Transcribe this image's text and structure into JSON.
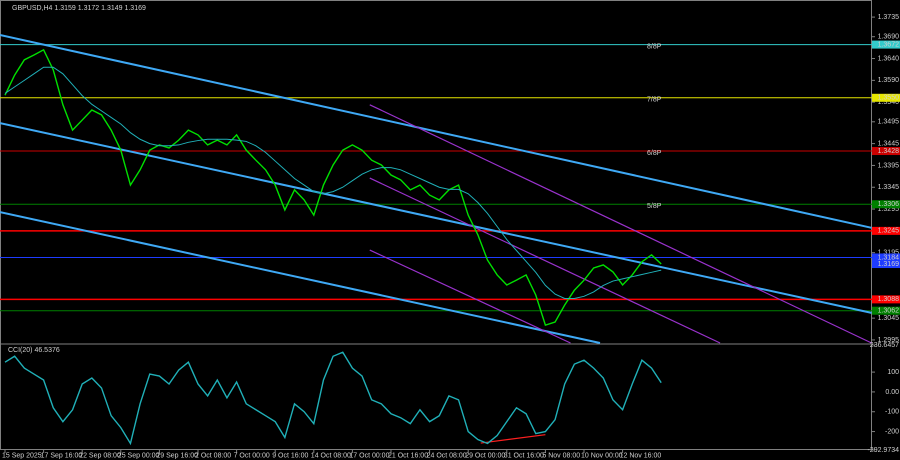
{
  "chart_data": [
    {
      "type": "line",
      "title": "GBPUSD,H4  1.3159 1.3172 1.3149 1.3169",
      "categories": [
        "15 Sep 2025",
        null,
        null,
        null,
        "17 Sep 16:00",
        null,
        null,
        null,
        "22 Sep 08:00",
        null,
        null,
        null,
        "25 Sep 00:00",
        null,
        null,
        null,
        "29 Sep 16:00",
        null,
        null,
        null,
        "2 Oct 08:00",
        null,
        null,
        null,
        "7 Oct 00:00",
        null,
        null,
        null,
        "9 Oct 16:00",
        null,
        null,
        null,
        "14 Oct 08:00",
        null,
        null,
        null,
        "17 Oct 00:00",
        null,
        null,
        null,
        "21 Oct 16:00",
        null,
        null,
        null,
        "24 Oct 08:00",
        null,
        null,
        null,
        "29 Oct 00:00",
        null,
        null,
        null,
        "31 Oct 16:00",
        null,
        null,
        null,
        "5 Nov 08:00",
        null,
        null,
        null,
        "10 Nov 00:00",
        null,
        null,
        null,
        "12 Nov 16:00",
        null,
        null,
        null,
        null
      ],
      "series": [
        {
          "color": "#00e000",
          "values": [
            1.3556,
            1.3602,
            1.3637,
            1.3648,
            1.366,
            1.3614,
            1.3534,
            1.3476,
            1.3499,
            1.3522,
            1.3511,
            1.3476,
            1.343,
            1.335,
            1.3385,
            1.343,
            1.3442,
            1.3435,
            1.3453,
            1.3476,
            1.3465,
            1.3442,
            1.3453,
            1.3442,
            1.3465,
            1.343,
            1.3407,
            1.3385,
            1.335,
            1.3293,
            1.3339,
            1.3316,
            1.3281,
            1.335,
            1.3396,
            1.343,
            1.3442,
            1.343,
            1.3407,
            1.3396,
            1.3373,
            1.3362,
            1.3339,
            1.335,
            1.3327,
            1.3316,
            1.3339,
            1.335,
            1.3281,
            1.3236,
            1.3178,
            1.3144,
            1.3121,
            1.3132,
            1.3144,
            1.3098,
            1.3029,
            1.3036,
            1.3075,
            1.3109,
            1.3132,
            1.316,
            1.3167,
            1.3151,
            1.3121,
            1.3144,
            1.3174,
            1.319,
            1.3169
          ]
        },
        {
          "color": "#20b0b8",
          "values": [
            1.356,
            1.3575,
            1.359,
            1.3605,
            1.362,
            1.362,
            1.3605,
            1.358,
            1.3555,
            1.3535,
            1.352,
            1.3505,
            1.349,
            1.347,
            1.3455,
            1.3445,
            1.344,
            1.344,
            1.3442,
            1.3448,
            1.3452,
            1.3455,
            1.3455,
            1.3455,
            1.3453,
            1.345,
            1.344,
            1.3425,
            1.3405,
            1.3385,
            1.3365,
            1.335,
            1.3335,
            1.333,
            1.3335,
            1.3345,
            1.336,
            1.3375,
            1.3385,
            1.339,
            1.339,
            1.3385,
            1.3375,
            1.3365,
            1.3355,
            1.3345,
            1.334,
            1.334,
            1.333,
            1.331,
            1.3285,
            1.3255,
            1.3225,
            1.32,
            1.3175,
            1.315,
            1.312,
            1.31,
            1.309,
            1.309,
            1.3095,
            1.3105,
            1.312,
            1.313,
            1.3135,
            1.314,
            1.3145,
            1.315,
            1.3155
          ]
        }
      ],
      "lines": [
        {
          "color": "#3fa9f5",
          "x": [
            -0.52,
            89.8
          ],
          "y": [
            1.3694,
            1.3252
          ]
        },
        {
          "color": "#3fa9f5",
          "x": [
            -0.52,
            89.8
          ],
          "y": [
            1.3492,
            1.3057
          ]
        },
        {
          "color": "#3fa9f5",
          "x": [
            -0.52,
            61.66
          ],
          "y": [
            1.3288,
            1.2988
          ]
        },
        {
          "color": "#9932cc",
          "x": [
            37.8,
            89.8
          ],
          "y": [
            1.3534,
            1.2988
          ]
        },
        {
          "color": "#9932cc",
          "x": [
            37.8,
            74.1
          ],
          "y": [
            1.3366,
            1.2988
          ]
        },
        {
          "color": "#9932cc",
          "x": [
            37.8,
            58.6
          ],
          "y": [
            1.3201,
            1.2988
          ]
        }
      ],
      "levels": [
        {
          "name": "8/8P",
          "value": 1.3672,
          "label": "1.3672",
          "color": "#33cccc"
        },
        {
          "name": "7/8P",
          "value": 1.355,
          "label": "1.3550",
          "color": "#e6e600"
        },
        {
          "name": "6/8P",
          "value": 1.3428,
          "label": "1.3428",
          "color": "#cc0000"
        },
        {
          "name": "5/8P",
          "value": 1.3306,
          "label": "1.3306",
          "color": "#008000"
        },
        {
          "value": 1.3245,
          "label": "1.3245",
          "color": "#ff0000"
        },
        {
          "value": 1.3184,
          "label": "1.3184",
          "color": "#1e3cff"
        },
        {
          "value": 1.3088,
          "label": "1.3088",
          "color": "#ff0000"
        },
        {
          "value": 1.3062,
          "label": "1.3062",
          "color": "#008000"
        }
      ],
      "last_price": 1.3169,
      "ylim": [
        1.2988,
        1.3765
      ],
      "yticks": [
        1.3735,
        {
          "value": 1.369,
          "label": "1.3690"
        },
        {
          "value": 1.364,
          "label": "1.3640"
        },
        {
          "value": 1.359,
          "label": "1.3590"
        },
        {
          "value": 1.354,
          "label": "1.3540"
        },
        1.3495,
        1.3445,
        1.3395,
        1.3345,
        1.3295,
        1.3195,
        1.3045,
        1.2995
      ]
    },
    {
      "type": "line",
      "title": "CCI(20) 46.5376",
      "series": [
        {
          "color": "#20b0b8",
          "values": [
            150,
            180,
            120,
            90,
            60,
            -80,
            -150,
            -90,
            40,
            70,
            20,
            -120,
            -180,
            -260,
            -60,
            90,
            80,
            40,
            110,
            150,
            40,
            -20,
            60,
            -30,
            50,
            -60,
            -90,
            -120,
            -150,
            -230,
            -60,
            -100,
            -160,
            60,
            180,
            200,
            120,
            80,
            -40,
            -60,
            -110,
            -130,
            -160,
            -90,
            -150,
            -120,
            -20,
            -40,
            -200,
            -240,
            -260,
            -220,
            -150,
            -80,
            -110,
            -210,
            -200,
            -140,
            40,
            140,
            160,
            120,
            70,
            -40,
            -90,
            40,
            160,
            120,
            46.5376
          ]
        }
      ],
      "lines": [
        {
          "color": "#ff2020",
          "x": [
            49.3,
            56.0
          ],
          "y": [
            -257.9,
            -215.8
          ]
        }
      ],
      "ylim": [
        -292.9734,
        236.6457
      ],
      "yticks": [
        236.6457,
        100,
        {
          "value": 0,
          "label": "0.00"
        },
        -100,
        -200,
        -292.9734
      ]
    }
  ]
}
